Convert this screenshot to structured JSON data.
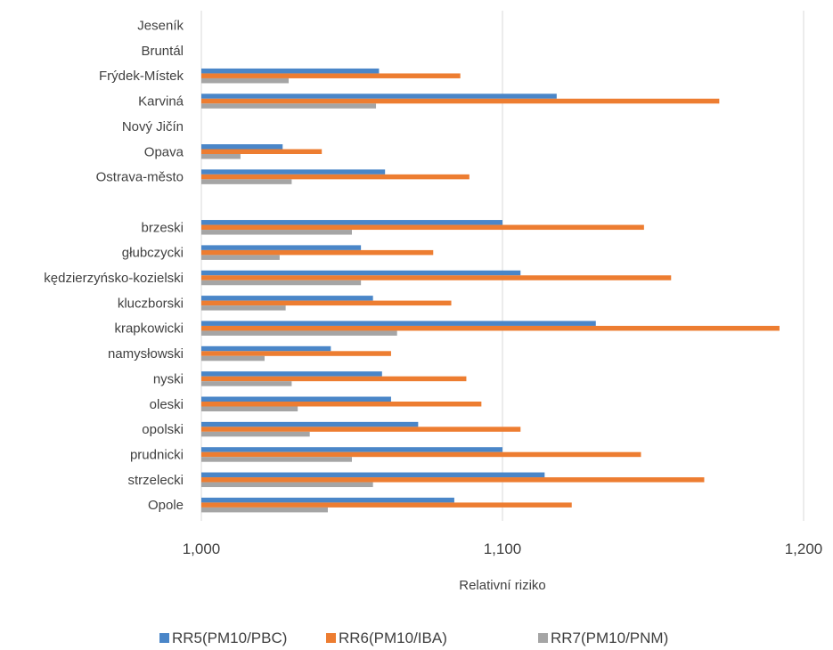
{
  "chart_data": {
    "type": "bar",
    "orientation": "horizontal",
    "title": "",
    "xlabel": "Relativní riziko",
    "ylabel": "",
    "xlim": [
      1.0,
      1.2
    ],
    "x_ticks": [
      1.0,
      1.1,
      1.2
    ],
    "x_tick_labels": [
      "1,000",
      "1,100",
      "1,200"
    ],
    "grid": "vertical",
    "legend_position": "bottom",
    "categories": [
      "Jeseník",
      "Bruntál",
      "Frýdek-Místek",
      "Karviná",
      "Nový Jičín",
      "Opava",
      "Ostrava-město",
      "",
      "brzeski",
      "głubczycki",
      "kędzierzyńsko-kozielski",
      "kluczborski",
      "krapkowicki",
      "namysłowski",
      "nyski",
      "oleski",
      "opolski",
      "prudnicki",
      "strzelecki",
      "Opole"
    ],
    "series": [
      {
        "name": "RR5(PM10/PBC)",
        "color": "#4a86c8",
        "values": [
          null,
          null,
          1.059,
          1.118,
          null,
          1.027,
          1.061,
          null,
          1.1,
          1.053,
          1.106,
          1.057,
          1.131,
          1.043,
          1.06,
          1.063,
          1.072,
          1.1,
          1.114,
          1.084
        ]
      },
      {
        "name": "RR6(PM10/IBA)",
        "color": "#ed7d31",
        "values": [
          null,
          null,
          1.086,
          1.172,
          null,
          1.04,
          1.089,
          null,
          1.147,
          1.077,
          1.156,
          1.083,
          1.192,
          1.063,
          1.088,
          1.093,
          1.106,
          1.146,
          1.167,
          1.123
        ]
      },
      {
        "name": "RR7(PM10/PNM)",
        "color": "#a5a5a5",
        "values": [
          null,
          null,
          1.029,
          1.058,
          null,
          1.013,
          1.03,
          null,
          1.05,
          1.026,
          1.053,
          1.028,
          1.065,
          1.021,
          1.03,
          1.032,
          1.036,
          1.05,
          1.057,
          1.042
        ]
      }
    ]
  }
}
